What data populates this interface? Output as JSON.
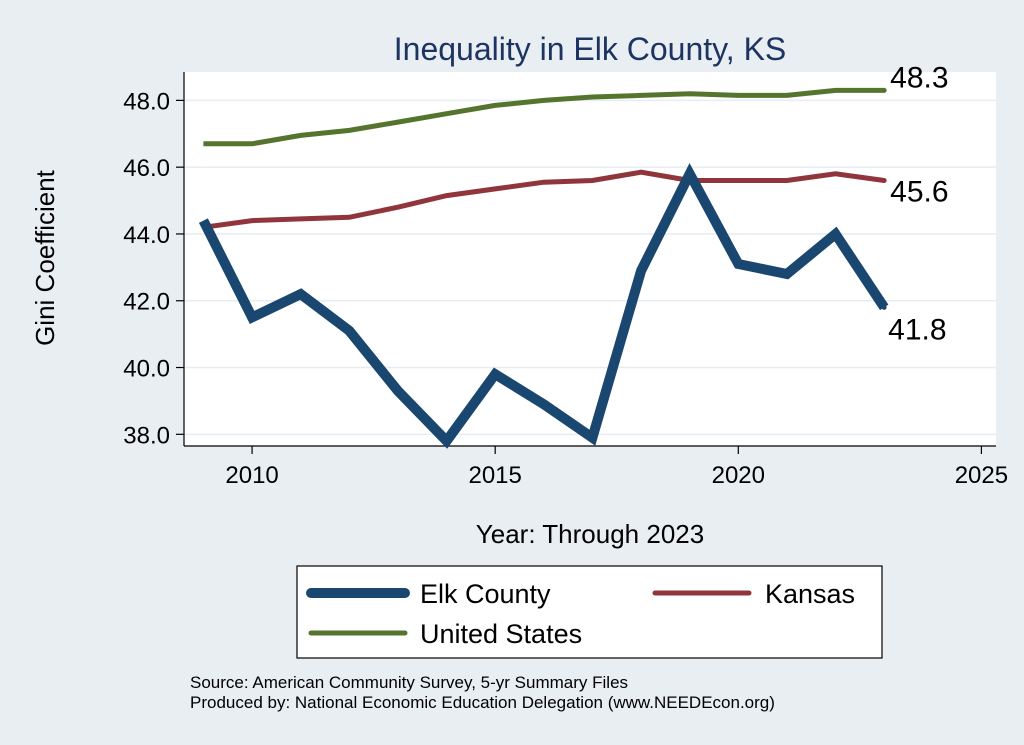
{
  "chart_data": {
    "type": "line",
    "title": "Inequality in Elk County, KS",
    "xlabel": "Year: Through 2023",
    "ylabel": "Gini Coefficient",
    "xlim": [
      2008.6,
      2025.3
    ],
    "ylim": [
      37.65,
      48.85
    ],
    "x_ticks": [
      2010,
      2015,
      2020,
      2025
    ],
    "y_ticks": [
      38.0,
      40.0,
      42.0,
      44.0,
      46.0,
      48.0
    ],
    "grid": true,
    "x": [
      2009,
      2010,
      2011,
      2012,
      2013,
      2014,
      2015,
      2016,
      2017,
      2018,
      2019,
      2020,
      2021,
      2022,
      2023
    ],
    "series": [
      {
        "name": "Elk County",
        "color": "#1a476f",
        "values": [
          44.4,
          41.5,
          42.2,
          41.1,
          39.3,
          37.8,
          39.8,
          38.9,
          37.9,
          42.9,
          45.8,
          43.1,
          42.8,
          44.0,
          41.8
        ],
        "end_label": "41.8"
      },
      {
        "name": "Kansas",
        "color": "#90353b",
        "values": [
          44.2,
          44.4,
          44.45,
          44.5,
          44.8,
          45.15,
          45.35,
          45.55,
          45.6,
          45.85,
          45.6,
          45.6,
          45.6,
          45.8,
          45.6
        ],
        "end_label": "45.6"
      },
      {
        "name": "United States",
        "color": "#55752f",
        "values": [
          46.7,
          46.7,
          46.95,
          47.1,
          47.35,
          47.6,
          47.85,
          48.0,
          48.1,
          48.15,
          48.2,
          48.15,
          48.15,
          48.3,
          48.3
        ],
        "end_label": "48.3"
      }
    ],
    "legend": {
      "position": "bottom",
      "entries": [
        "Elk County",
        "Kansas",
        "United States"
      ]
    }
  },
  "notes": {
    "source": "Source: American Community Survey, 5-yr Summary Files",
    "produced_by": "Produced by: National Economic Education Delegation (www.NEEDEcon.org)"
  }
}
